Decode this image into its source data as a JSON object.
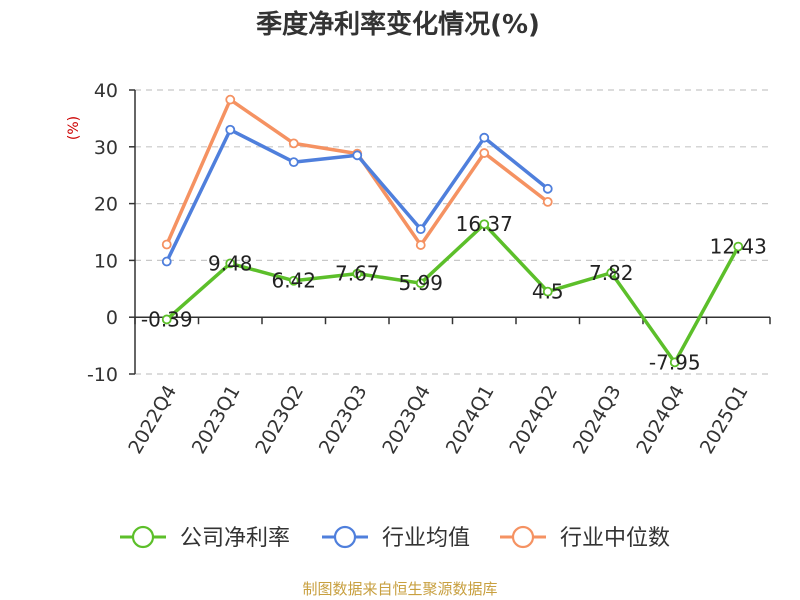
{
  "chart_data": {
    "type": "line",
    "title": "季度净利率变化情况(%)",
    "ylabel": "(%)",
    "xlabel": "",
    "ylim": [
      -10,
      40
    ],
    "yticks": [
      40,
      30,
      20,
      10,
      0,
      -10
    ],
    "grid": true,
    "legend_position": "bottom",
    "categories": [
      "2022Q4",
      "2023Q1",
      "2023Q2",
      "2023Q3",
      "2023Q4",
      "2024Q1",
      "2024Q2",
      "2024Q3",
      "2024Q4",
      "2025Q1"
    ],
    "series": [
      {
        "name": "公司净利率",
        "color": "#5cbf2a",
        "values": [
          -0.39,
          9.48,
          6.42,
          7.67,
          5.99,
          16.37,
          4.5,
          7.82,
          -7.95,
          12.43
        ],
        "labels": [
          "-0.39",
          "9.48",
          "6.42",
          "7.67",
          "5.99",
          "16.37",
          "4.5",
          "7.82",
          "-7.95",
          "12.43"
        ]
      },
      {
        "name": "行业均值",
        "color": "#4f7fdc",
        "values": [
          9.8,
          33.0,
          27.3,
          28.5,
          15.5,
          31.6,
          22.6,
          null,
          null,
          null
        ]
      },
      {
        "name": "行业中位数",
        "color": "#f59262",
        "values": [
          12.8,
          38.3,
          30.6,
          28.8,
          12.7,
          28.9,
          20.3,
          null,
          null,
          null
        ]
      }
    ]
  },
  "source_text": "制图数据来自恒生聚源数据库"
}
